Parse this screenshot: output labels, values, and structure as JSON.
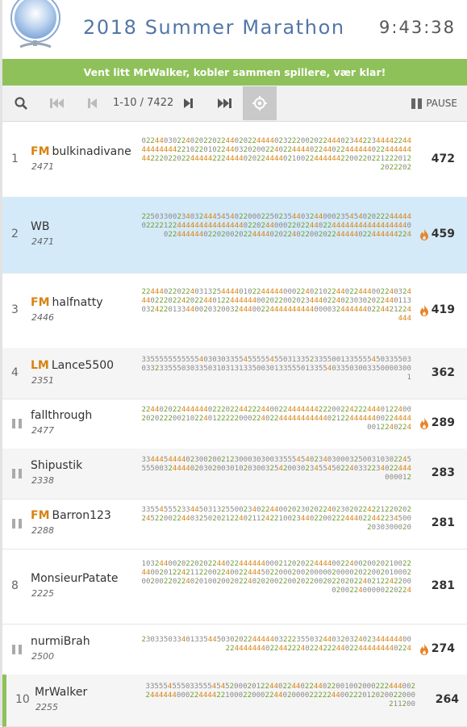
{
  "header": {
    "title": "2018 Summer Marathon",
    "clock": "9:43:38"
  },
  "banner": {
    "text": "Vent litt MrWalker, kobler sammen spillere, vær klar!"
  },
  "controls": {
    "page_text": "1-10 / 7422",
    "pause_label": "PAUSE"
  },
  "colors": {
    "accent_green": "#8fc15a",
    "title_blue": "#5276a8",
    "title_orange": "#d8830f",
    "highlight_row": "#d4eaf9"
  },
  "players": [
    {
      "rank": "1",
      "paused": false,
      "title": "FM",
      "name": "bulkinadivane",
      "rating": "2471",
      "score": "472",
      "fire": false,
      "moves": "0224403022402022022440202244440232220020224440234422344442244444444442210220102244032020022402244440224402244444402244444444222022022444442224444020224444021002244444422002202212220122022202"
    },
    {
      "rank": "2",
      "paused": false,
      "title": "",
      "name": "WB",
      "rating": "2471",
      "score": "459",
      "fire": true,
      "moves": "2250330023403244454540220002250235440324400023545402022244444022221224444444444444440220244000220224402244444444444444444002244444402202002022444402022402200202244444022444444224"
    },
    {
      "rank": "3",
      "paused": false,
      "title": "FM",
      "name": "halfnatty",
      "rating": "2446",
      "score": "419",
      "fire": true,
      "moves": "224440220224031325444401022444440002240210224402244400224032444022202242022440122444444002022002023444022402303020224401130324220133440020320032444002244444444440000324444440224421224444"
    },
    {
      "rank": "4",
      "paused": false,
      "title": "LM",
      "name": "Lance5500",
      "rating": "2351",
      "score": "362",
      "fire": false,
      "moves": "335555555555540303033554555554550313352335500133555545033550303323355503033503103131335003013355501335540335030033500003001"
    },
    {
      "rank": "",
      "paused": true,
      "title": "",
      "name": "fallthrough",
      "rating": "2477",
      "score": "289",
      "fire": true,
      "moves": "224402022444444022202244222440022444444422200224222444012240020202220021022401222220002240224444444444402122444444002244440012240224"
    },
    {
      "rank": "",
      "paused": true,
      "title": "",
      "name": "Shipustik",
      "rating": "2338",
      "score": "283",
      "fire": false,
      "moves": "33444544440230020021230003030033555454023403000325003103022455550032444402030200301020300325420030234554502240332234022444000012"
    },
    {
      "rank": "",
      "paused": true,
      "title": "FM",
      "name": "Barron123",
      "rating": "2288",
      "score": "281",
      "fire": false,
      "moves": "335545552334450313255002340224400202302022402302022422122020224522002244032502021224021124221002344022002224440224422345002030300020"
    },
    {
      "rank": "8",
      "paused": false,
      "title": "",
      "name": "MonsieurPatate",
      "rating": "2225",
      "score": "281",
      "fire": false,
      "moves": "103244002022020224402244444400021202022444400224002002021002244002012242112200224002244450220002002000002000020220020100020020022022402010020020224020200220020220020220202240212242200020022400000220224"
    },
    {
      "rank": "",
      "paused": true,
      "title": "",
      "name": "nurmiBrah",
      "rating": "2500",
      "score": "274",
      "fire": true,
      "moves": "2303350334013354450302022444440322235503244032032402344444400224444444022442224022422244022444444440224"
    },
    {
      "rank": "10",
      "paused": false,
      "title": "",
      "name": "MrWalker",
      "rating": "2255",
      "score": "264",
      "fire": false,
      "moves": "33555455503355545452000201224402244022440220010020002224440022444444000224444221000220002244020000222224400222012020022000211200"
    }
  ]
}
